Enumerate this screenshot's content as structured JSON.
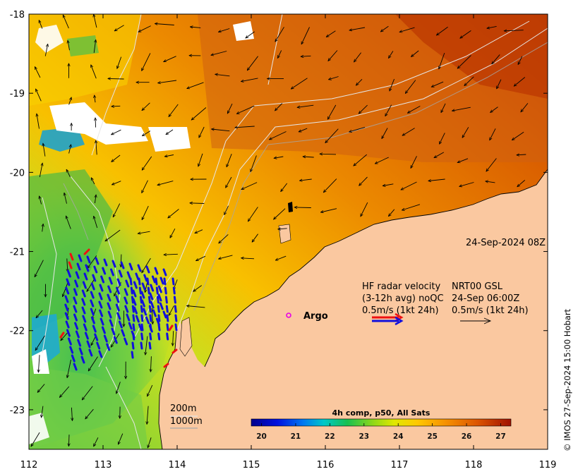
{
  "axes": {
    "lon_ticks": [
      "112",
      "113",
      "114",
      "115",
      "116",
      "117",
      "118",
      "119"
    ],
    "lat_ticks": [
      "-18",
      "-19",
      "-20",
      "-21",
      "-22",
      "-23"
    ],
    "lon_range": [
      112,
      119
    ],
    "lat_range": [
      -23.5,
      -18
    ]
  },
  "timestamp": "24-Sep-2024 08Z",
  "legend": {
    "left_col": [
      "HF radar velocity",
      "(3-12h avg) noQC",
      "0.5m/s (1kt 24h)"
    ],
    "right_col": [
      "NRT00 GSL",
      "24-Sep 06:00Z",
      "0.5m/s (1kt 24h)"
    ],
    "argo_label": "Argo",
    "argo_color": "#e600e6"
  },
  "isobaths": [
    "200m",
    "1000m"
  ],
  "colorbar": {
    "title": "4h comp, p50, All Sats",
    "ticks": [
      "20",
      "21",
      "22",
      "23",
      "24",
      "25",
      "26",
      "27"
    ],
    "min": 19.7,
    "max": 27.3
  },
  "credit": "© IMOS 27-Sep-2024 15:00 Hobart",
  "colors": {
    "land": "#fac8a0",
    "radar_blue": "#1010dd",
    "radar_red": "#ee1111",
    "cloud": "#ffffff"
  }
}
